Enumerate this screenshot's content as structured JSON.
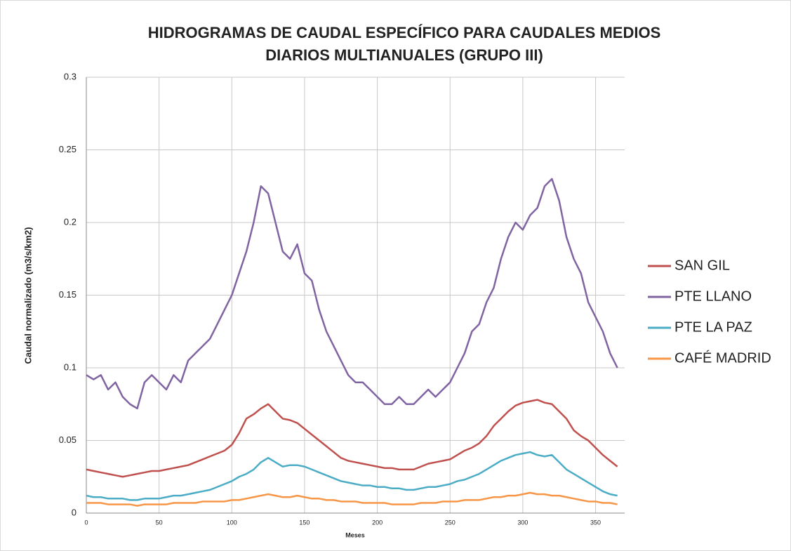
{
  "chart_data": {
    "type": "line",
    "title": "HIDROGRAMAS DE CAUDAL ESPECÍFICO PARA CAUDALES MEDIOS DIARIOS MULTIANUALES (GRUPO III)",
    "x_label": "Meses",
    "y_label": "Caudal  normalizado (m3/s/km2)",
    "xlim": [
      0,
      370
    ],
    "ylim": [
      0,
      0.3
    ],
    "xticks": [
      0,
      50,
      100,
      150,
      200,
      250,
      300,
      350
    ],
    "yticks": [
      0,
      0.05,
      0.1,
      0.15,
      0.2,
      0.25,
      0.3
    ],
    "grid": true,
    "legend": "right",
    "x": [
      0,
      5,
      10,
      15,
      20,
      25,
      30,
      35,
      40,
      45,
      50,
      55,
      60,
      65,
      70,
      75,
      80,
      85,
      90,
      95,
      100,
      105,
      110,
      115,
      120,
      125,
      130,
      135,
      140,
      145,
      150,
      155,
      160,
      165,
      170,
      175,
      180,
      185,
      190,
      195,
      200,
      205,
      210,
      215,
      220,
      225,
      230,
      235,
      240,
      245,
      250,
      255,
      260,
      265,
      270,
      275,
      280,
      285,
      290,
      295,
      300,
      305,
      310,
      315,
      320,
      325,
      330,
      335,
      340,
      345,
      350,
      355,
      360,
      365
    ],
    "series": [
      {
        "name": "SAN GIL",
        "color": "#c0504d",
        "values": [
          0.03,
          0.029,
          0.028,
          0.027,
          0.026,
          0.025,
          0.026,
          0.027,
          0.028,
          0.029,
          0.029,
          0.03,
          0.031,
          0.032,
          0.033,
          0.035,
          0.037,
          0.039,
          0.041,
          0.043,
          0.047,
          0.055,
          0.065,
          0.068,
          0.072,
          0.075,
          0.07,
          0.065,
          0.064,
          0.062,
          0.058,
          0.054,
          0.05,
          0.046,
          0.042,
          0.038,
          0.036,
          0.035,
          0.034,
          0.033,
          0.032,
          0.031,
          0.031,
          0.03,
          0.03,
          0.03,
          0.032,
          0.034,
          0.035,
          0.036,
          0.037,
          0.04,
          0.043,
          0.045,
          0.048,
          0.053,
          0.06,
          0.065,
          0.07,
          0.074,
          0.076,
          0.077,
          0.078,
          0.076,
          0.075,
          0.07,
          0.065,
          0.057,
          0.053,
          0.05,
          0.045,
          0.04,
          0.036,
          0.032
        ]
      },
      {
        "name": "PTE LLANO",
        "color": "#8064a2",
        "values": [
          0.095,
          0.092,
          0.095,
          0.085,
          0.09,
          0.08,
          0.075,
          0.072,
          0.09,
          0.095,
          0.09,
          0.085,
          0.095,
          0.09,
          0.105,
          0.11,
          0.115,
          0.12,
          0.13,
          0.14,
          0.15,
          0.165,
          0.18,
          0.2,
          0.225,
          0.22,
          0.2,
          0.18,
          0.175,
          0.185,
          0.165,
          0.16,
          0.14,
          0.125,
          0.115,
          0.105,
          0.095,
          0.09,
          0.09,
          0.085,
          0.08,
          0.075,
          0.075,
          0.08,
          0.075,
          0.075,
          0.08,
          0.085,
          0.08,
          0.085,
          0.09,
          0.1,
          0.11,
          0.125,
          0.13,
          0.145,
          0.155,
          0.175,
          0.19,
          0.2,
          0.195,
          0.205,
          0.21,
          0.225,
          0.23,
          0.215,
          0.19,
          0.175,
          0.165,
          0.145,
          0.135,
          0.125,
          0.11,
          0.1
        ]
      },
      {
        "name": "PTE LA PAZ",
        "color": "#4bacc6",
        "values": [
          0.012,
          0.011,
          0.011,
          0.01,
          0.01,
          0.01,
          0.009,
          0.009,
          0.01,
          0.01,
          0.01,
          0.011,
          0.012,
          0.012,
          0.013,
          0.014,
          0.015,
          0.016,
          0.018,
          0.02,
          0.022,
          0.025,
          0.027,
          0.03,
          0.035,
          0.038,
          0.035,
          0.032,
          0.033,
          0.033,
          0.032,
          0.03,
          0.028,
          0.026,
          0.024,
          0.022,
          0.021,
          0.02,
          0.019,
          0.019,
          0.018,
          0.018,
          0.017,
          0.017,
          0.016,
          0.016,
          0.017,
          0.018,
          0.018,
          0.019,
          0.02,
          0.022,
          0.023,
          0.025,
          0.027,
          0.03,
          0.033,
          0.036,
          0.038,
          0.04,
          0.041,
          0.042,
          0.04,
          0.039,
          0.04,
          0.035,
          0.03,
          0.027,
          0.024,
          0.021,
          0.018,
          0.015,
          0.013,
          0.012
        ]
      },
      {
        "name": "CAFÉ MADRID",
        "color": "#f79646",
        "values": [
          0.007,
          0.007,
          0.007,
          0.006,
          0.006,
          0.006,
          0.006,
          0.005,
          0.006,
          0.006,
          0.006,
          0.006,
          0.007,
          0.007,
          0.007,
          0.007,
          0.008,
          0.008,
          0.008,
          0.008,
          0.009,
          0.009,
          0.01,
          0.011,
          0.012,
          0.013,
          0.012,
          0.011,
          0.011,
          0.012,
          0.011,
          0.01,
          0.01,
          0.009,
          0.009,
          0.008,
          0.008,
          0.008,
          0.007,
          0.007,
          0.007,
          0.007,
          0.006,
          0.006,
          0.006,
          0.006,
          0.007,
          0.007,
          0.007,
          0.008,
          0.008,
          0.008,
          0.009,
          0.009,
          0.009,
          0.01,
          0.011,
          0.011,
          0.012,
          0.012,
          0.013,
          0.014,
          0.013,
          0.013,
          0.012,
          0.012,
          0.011,
          0.01,
          0.009,
          0.008,
          0.008,
          0.007,
          0.007,
          0.006
        ]
      }
    ]
  }
}
